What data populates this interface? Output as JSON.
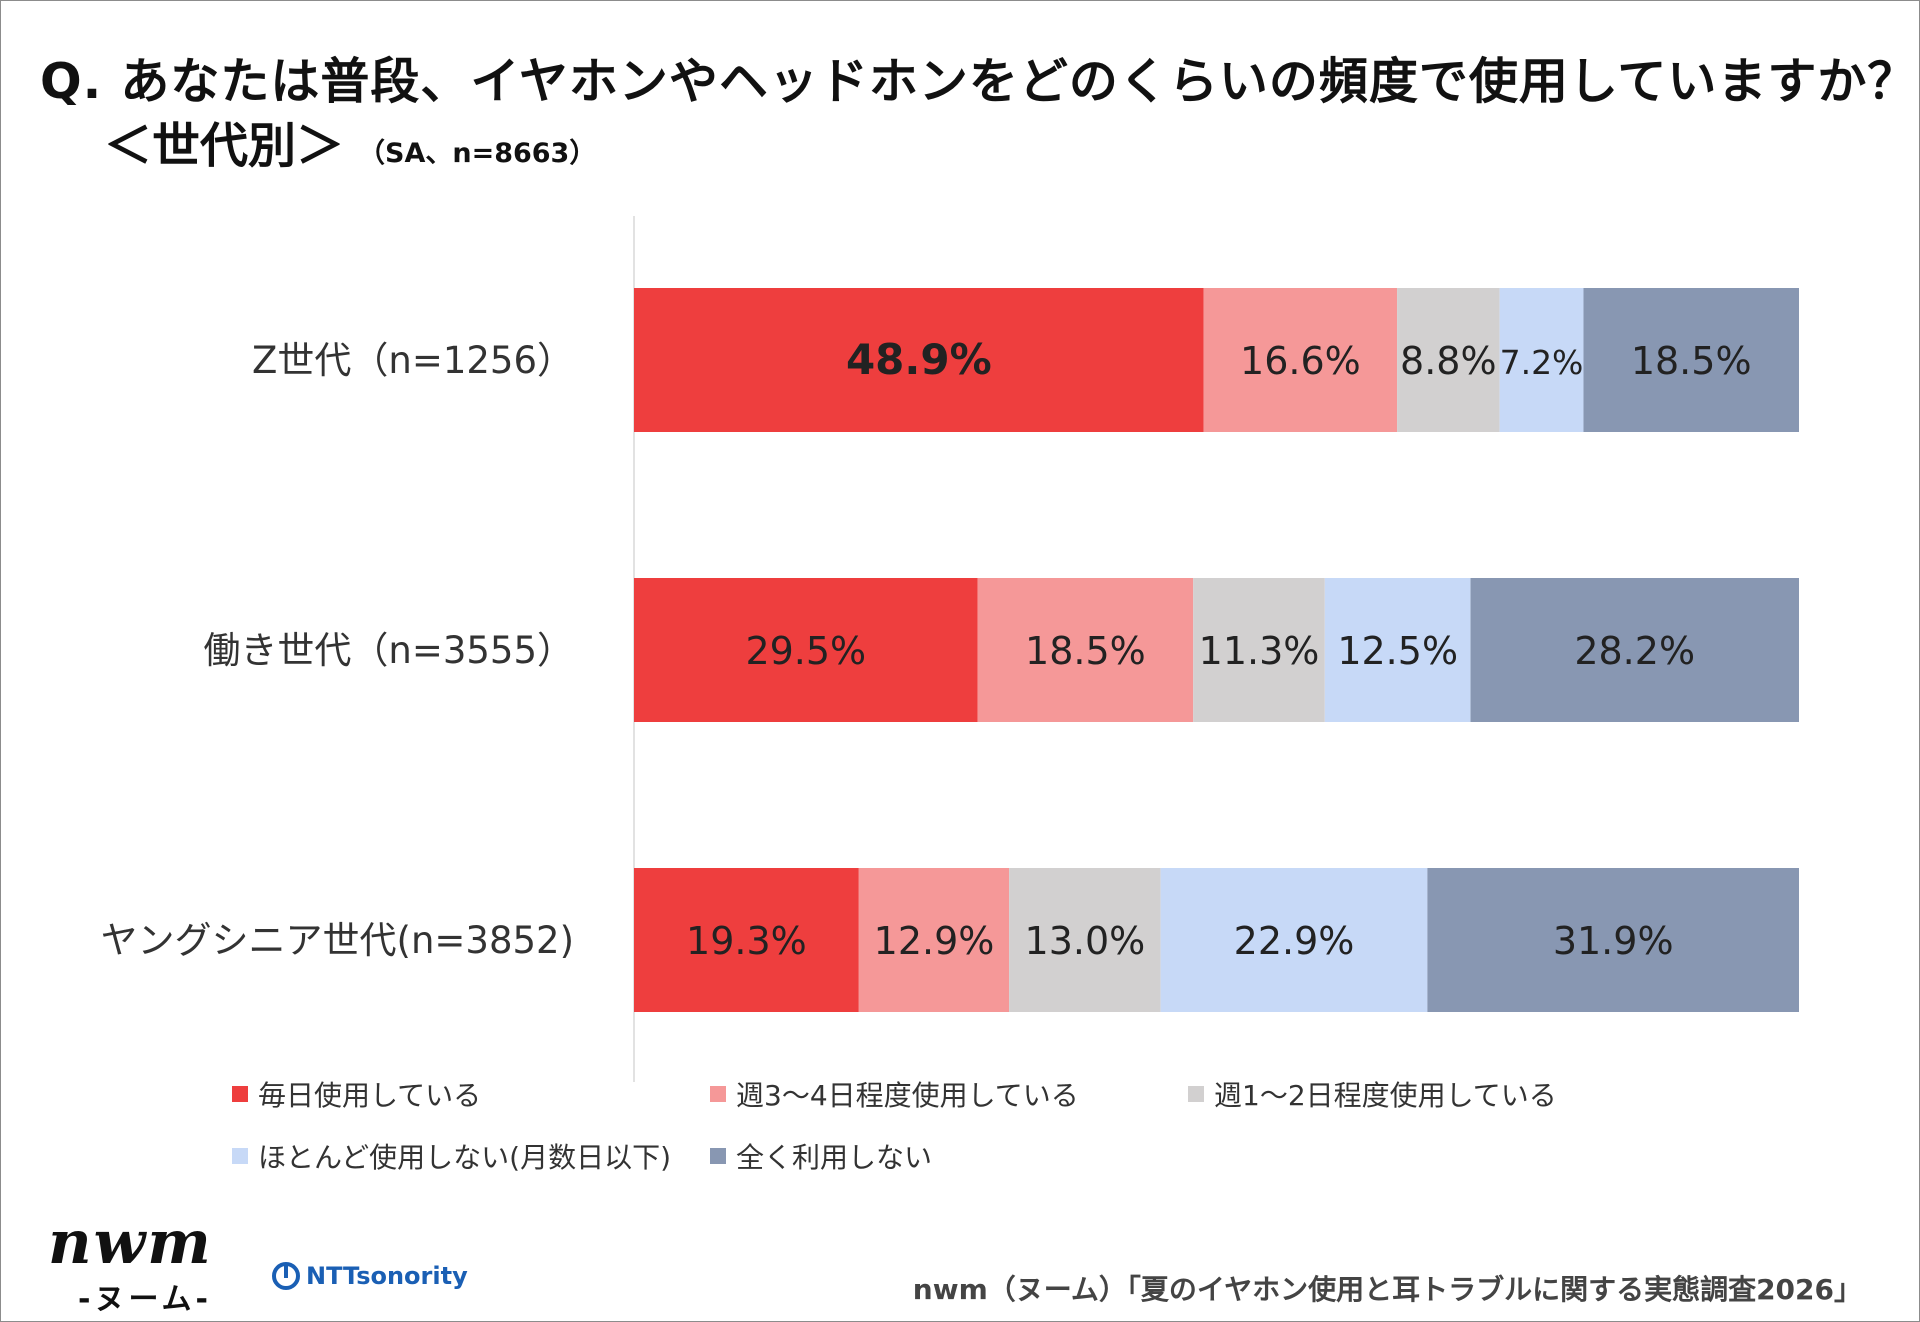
{
  "header": {
    "title": "Q. あなたは普段、イヤホンやヘッドホンをどのくらいの頻度で使用していますか？",
    "subtitle": "＜世代別＞",
    "sample_note": "（SA、n=8663）"
  },
  "chart_data": {
    "type": "bar",
    "orientation": "horizontal",
    "stacked": true,
    "unit": "%",
    "categories": [
      "Z世代（n=1256）",
      "働き世代（n=3555）",
      "ヤングシニア世代(n=3852)"
    ],
    "series": [
      {
        "name": "毎日使用している",
        "color": "#ee3e3e",
        "values": [
          48.9,
          29.5,
          19.3
        ]
      },
      {
        "name": "週3〜4日程度使用している",
        "color": "#f59898",
        "values": [
          16.6,
          18.5,
          12.9
        ]
      },
      {
        "name": "週1〜2日程度使用している",
        "color": "#d2d0d0",
        "values": [
          8.8,
          11.3,
          13.0
        ]
      },
      {
        "name": "ほとんど使用しない(月数日以下)",
        "color": "#c7d9f7",
        "values": [
          7.2,
          12.5,
          22.9
        ]
      },
      {
        "name": "全く利用しない",
        "color": "#8897b2",
        "values": [
          18.5,
          28.2,
          31.9
        ]
      }
    ],
    "data_labels": [
      [
        "48.9%",
        "16.6%",
        "8.8%",
        "7.2%",
        "18.5%"
      ],
      [
        "29.5%",
        "18.5%",
        "11.3%",
        "12.5%",
        "28.2%"
      ],
      [
        "19.3%",
        "12.9%",
        "13.0%",
        "22.9%",
        "31.9%"
      ]
    ],
    "xlim": [
      0,
      100
    ],
    "legend_position": "bottom",
    "grid": false
  },
  "branding": {
    "logo_text": "nwm",
    "logo_kana": "-ヌーム-",
    "partner_logo_text": "NTTsonority"
  },
  "footer": {
    "source": "nwm（ヌーム）「夏のイヤホン使用と耳トラブルに関する実態調査2026」"
  }
}
